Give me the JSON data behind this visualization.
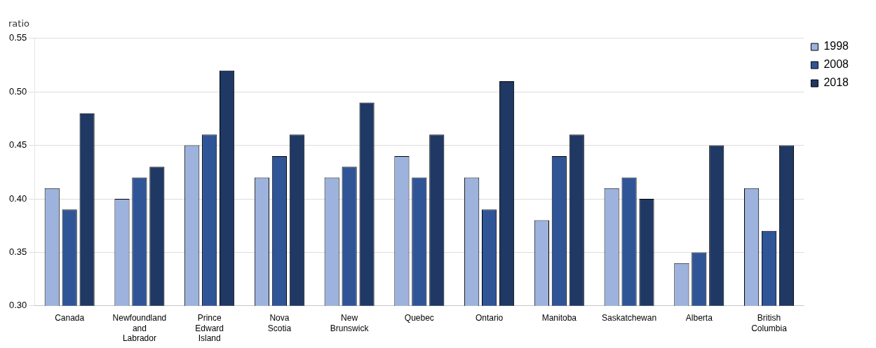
{
  "chart_data": {
    "type": "bar",
    "ylabel": "ratio",
    "categories": [
      "Canada",
      "Newfoundland and Labrador",
      "Prince Edward Island",
      "Nova Scotia",
      "New Brunswick",
      "Quebec",
      "Ontario",
      "Manitoba",
      "Saskatchewan",
      "Alberta",
      "British Columbia"
    ],
    "series": [
      {
        "name": "1998",
        "color": "#9db3dd",
        "values": [
          0.41,
          0.4,
          0.45,
          0.42,
          0.42,
          0.44,
          0.42,
          0.38,
          0.41,
          0.34,
          0.41
        ]
      },
      {
        "name": "2008",
        "color": "#2f5597",
        "values": [
          0.39,
          0.42,
          0.46,
          0.44,
          0.43,
          0.42,
          0.39,
          0.44,
          0.42,
          0.35,
          0.37
        ]
      },
      {
        "name": "2018",
        "color": "#1f3864",
        "values": [
          0.48,
          0.43,
          0.52,
          0.46,
          0.49,
          0.46,
          0.51,
          0.46,
          0.4,
          0.45,
          0.45
        ]
      }
    ],
    "ylim": [
      0.3,
      0.55
    ],
    "yticks": [
      {
        "value": 0.3,
        "label": "0.30"
      },
      0.35,
      {
        "value": 0.4,
        "label": "0.40"
      },
      0.45,
      {
        "value": 0.5,
        "label": "0.50"
      },
      0.55
    ],
    "grid": "y",
    "legend": "top right"
  }
}
